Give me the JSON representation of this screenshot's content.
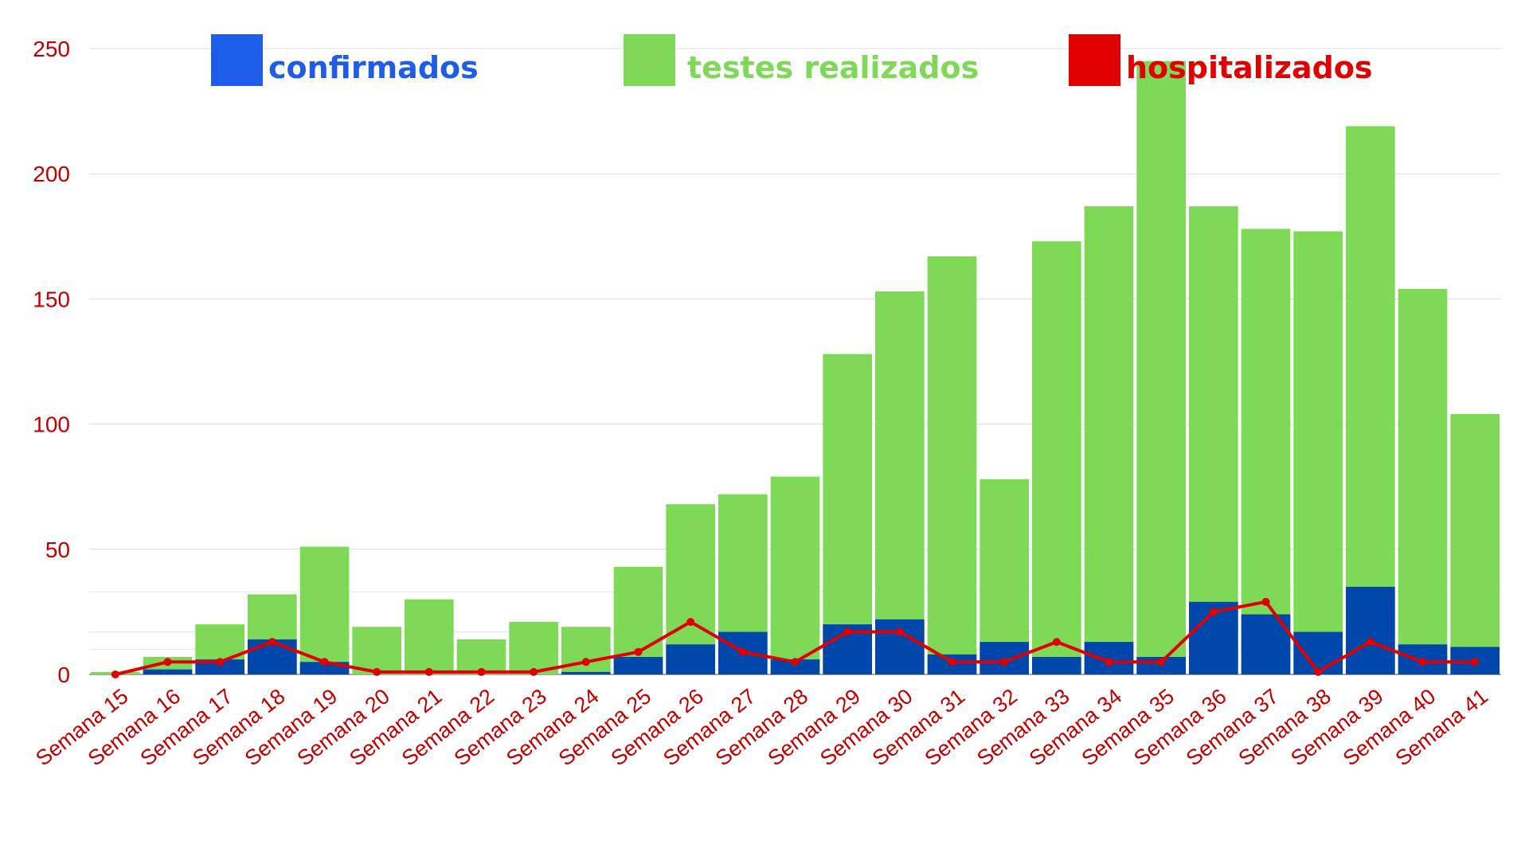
{
  "chart_data": {
    "type": "bar",
    "categories": [
      "Semana 15",
      "Semana 16",
      "Semana 17",
      "Semana 18",
      "Semana 19",
      "Semana 20",
      "Semana 21",
      "Semana 22",
      "Semana 23",
      "Semana 24",
      "Semana 25",
      "Semana 26",
      "Semana 27",
      "Semana 28",
      "Semana 29",
      "Semana 30",
      "Semana 31",
      "Semana 32",
      "Semana 33",
      "Semana 34",
      "Semana 35",
      "Semana 36",
      "Semana 37",
      "Semana 38",
      "Semana 39",
      "Semana 40",
      "Semana 41"
    ],
    "ylim": [
      0,
      250
    ],
    "yticks": [
      0,
      50,
      100,
      150,
      200,
      250
    ],
    "grid": true,
    "legend_position": "top",
    "series": [
      {
        "name": "testes realizados",
        "type": "bar",
        "color": "#7ed957",
        "values": [
          1,
          7,
          20,
          32,
          51,
          19,
          30,
          14,
          21,
          19,
          43,
          68,
          72,
          79,
          128,
          153,
          167,
          78,
          173,
          187,
          245,
          187,
          178,
          177,
          219,
          154,
          104
        ]
      },
      {
        "name": "confirmados",
        "type": "bar",
        "color": "#0047ab",
        "legend_color": "#1f5de8",
        "values": [
          0,
          2,
          6,
          14,
          5,
          0,
          0,
          0,
          0,
          1,
          7,
          12,
          17,
          6,
          20,
          22,
          8,
          13,
          7,
          13,
          7,
          29,
          24,
          17,
          35,
          12,
          11
        ]
      },
      {
        "name": "hospitalizados",
        "type": "line",
        "color": "#e00000",
        "values": [
          0,
          5,
          5,
          13,
          5,
          1,
          1,
          1,
          1,
          5,
          9,
          21,
          9,
          5,
          17,
          17,
          5,
          5,
          13,
          5,
          5,
          25,
          29,
          1,
          13,
          5,
          5
        ]
      }
    ],
    "axis_color": "#c00000"
  }
}
